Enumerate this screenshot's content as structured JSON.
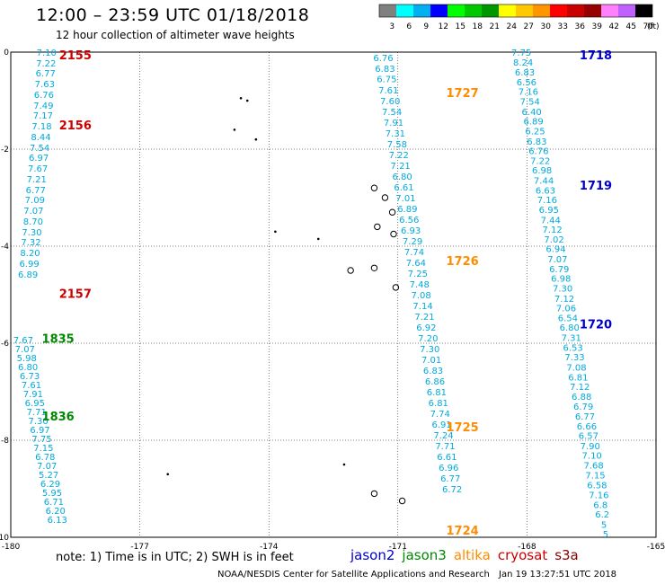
{
  "header": {
    "title": "12:00 – 23:59 UTC 01/18/2018",
    "subtitle": "12 hour collection of altimeter wave heights"
  },
  "colorbar": {
    "unit": "(ft)",
    "ticks": [
      "3",
      "6",
      "9",
      "12",
      "15",
      "18",
      "21",
      "24",
      "27",
      "30",
      "33",
      "36",
      "39",
      "42",
      "45",
      "70"
    ],
    "colors": [
      "#808080",
      "#00ffff",
      "#00b0f0",
      "#0000ff",
      "#00ff00",
      "#00c800",
      "#009600",
      "#ffff00",
      "#ffc800",
      "#ff9600",
      "#ff0000",
      "#c80000",
      "#960000",
      "#ff80ff",
      "#c060ff",
      "#000000"
    ]
  },
  "footer": {
    "note": "note: 1) Time is in UTC; 2) SWH is in feet",
    "satellites": [
      {
        "name": "jason2",
        "color": "#0000cc"
      },
      {
        "name": "jason3",
        "color": "#008800"
      },
      {
        "name": "altika",
        "color": "#ff8c00"
      },
      {
        "name": "cryosat",
        "color": "#cc0000"
      },
      {
        "name": "s3a",
        "color": "#880000"
      }
    ],
    "credit": "NOAA/NESDIS Center for Satellite Applications and Research",
    "stamp": "Jan 19 13:27:51 UTC 2018"
  },
  "chart_data": {
    "type": "scatter",
    "units": "ft",
    "xlim": [
      -180,
      -165
    ],
    "ylim": [
      -10,
      0
    ],
    "x_ticks": [
      -180,
      -177,
      -174,
      -171,
      -168,
      -165
    ],
    "y_ticks": [
      0,
      -2,
      -4,
      -6,
      -8,
      -10
    ],
    "grid": true,
    "value_color": "#00aadd",
    "tracks": [
      {
        "satellite": "cryosat",
        "times": [
          {
            "label": "2155",
            "lat": -0.06
          },
          {
            "label": "2156",
            "lat": -1.5
          },
          {
            "label": "2157",
            "lat": -4.97
          }
        ],
        "label_lon": -178.5,
        "points": [
          {
            "lon": -179.17,
            "lat": 0,
            "v": "7.10"
          },
          {
            "lon": -179.18,
            "lat": -0.22,
            "v": "7.22"
          },
          {
            "lon": -179.19,
            "lat": -0.43,
            "v": "6.77"
          },
          {
            "lon": -179.21,
            "lat": -0.65,
            "v": "7.63"
          },
          {
            "lon": -179.23,
            "lat": -0.87,
            "v": "6.76"
          },
          {
            "lon": -179.24,
            "lat": -1.09,
            "v": "7.49"
          },
          {
            "lon": -179.25,
            "lat": -1.3,
            "v": "7.17"
          },
          {
            "lon": -179.28,
            "lat": -1.52,
            "v": "7.18"
          },
          {
            "lon": -179.3,
            "lat": -1.74,
            "v": "8.44"
          },
          {
            "lon": -179.33,
            "lat": -1.96,
            "v": "7.54"
          },
          {
            "lon": -179.35,
            "lat": -2.17,
            "v": "6.97"
          },
          {
            "lon": -179.37,
            "lat": -2.39,
            "v": "7.67"
          },
          {
            "lon": -179.4,
            "lat": -2.61,
            "v": "7.21"
          },
          {
            "lon": -179.42,
            "lat": -2.83,
            "v": "6.77"
          },
          {
            "lon": -179.44,
            "lat": -3.04,
            "v": "7.09"
          },
          {
            "lon": -179.47,
            "lat": -3.26,
            "v": "7.07"
          },
          {
            "lon": -179.48,
            "lat": -3.48,
            "v": "8.70"
          },
          {
            "lon": -179.51,
            "lat": -3.7,
            "v": "7.30"
          },
          {
            "lon": -179.53,
            "lat": -3.91,
            "v": "7.32"
          },
          {
            "lon": -179.55,
            "lat": -4.13,
            "v": "8.20"
          },
          {
            "lon": -179.57,
            "lat": -4.35,
            "v": "6.99"
          },
          {
            "lon": -179.6,
            "lat": -4.57,
            "v": "6.89"
          }
        ]
      },
      {
        "satellite": "jason3",
        "times": [
          {
            "label": "1835",
            "lat": -5.9
          },
          {
            "label": "1836",
            "lat": -7.5
          }
        ],
        "label_lon": -178.9,
        "points": [
          {
            "lon": -179.71,
            "lat": -5.93,
            "v": "7.67"
          },
          {
            "lon": -179.67,
            "lat": -6.11,
            "v": "7.07"
          },
          {
            "lon": -179.63,
            "lat": -6.3,
            "v": "5.98"
          },
          {
            "lon": -179.6,
            "lat": -6.48,
            "v": "6.80"
          },
          {
            "lon": -179.56,
            "lat": -6.67,
            "v": "6.73"
          },
          {
            "lon": -179.52,
            "lat": -6.85,
            "v": "7.61"
          },
          {
            "lon": -179.48,
            "lat": -7.04,
            "v": "7.91"
          },
          {
            "lon": -179.44,
            "lat": -7.22,
            "v": "6.95"
          },
          {
            "lon": -179.4,
            "lat": -7.41,
            "v": "7.71"
          },
          {
            "lon": -179.36,
            "lat": -7.59,
            "v": "7.30"
          },
          {
            "lon": -179.32,
            "lat": -7.78,
            "v": "6.97"
          },
          {
            "lon": -179.28,
            "lat": -7.96,
            "v": "7.75"
          },
          {
            "lon": -179.24,
            "lat": -8.15,
            "v": "7.15"
          },
          {
            "lon": -179.2,
            "lat": -8.33,
            "v": "6.78"
          },
          {
            "lon": -179.16,
            "lat": -8.52,
            "v": "7.07"
          },
          {
            "lon": -179.12,
            "lat": -8.7,
            "v": "5.27"
          },
          {
            "lon": -179.08,
            "lat": -8.89,
            "v": "6.29"
          },
          {
            "lon": -179.04,
            "lat": -9.07,
            "v": "5.95"
          },
          {
            "lon": -179.0,
            "lat": -9.26,
            "v": "6.71"
          },
          {
            "lon": -178.96,
            "lat": -9.44,
            "v": "6.20"
          },
          {
            "lon": -178.92,
            "lat": -9.63,
            "v": "6.13"
          }
        ]
      },
      {
        "satellite": "altika",
        "times": [
          {
            "label": "1727",
            "lat": -0.83
          },
          {
            "label": "1726",
            "lat": -4.3
          },
          {
            "label": "1725",
            "lat": -7.72
          },
          {
            "label": "1724",
            "lat": -9.85
          }
        ],
        "label_lon": -169.5,
        "points": [
          {
            "lon": -171.34,
            "lat": -0.11,
            "v": "6.76"
          },
          {
            "lon": -171.3,
            "lat": -0.33,
            "v": "6.83"
          },
          {
            "lon": -171.26,
            "lat": -0.55,
            "v": "6.75"
          },
          {
            "lon": -171.22,
            "lat": -0.78,
            "v": "7.61"
          },
          {
            "lon": -171.18,
            "lat": -1.0,
            "v": "7.60"
          },
          {
            "lon": -171.14,
            "lat": -1.22,
            "v": "7.54"
          },
          {
            "lon": -171.1,
            "lat": -1.44,
            "v": "7.91"
          },
          {
            "lon": -171.06,
            "lat": -1.67,
            "v": "7.31"
          },
          {
            "lon": -171.02,
            "lat": -1.89,
            "v": "7.58"
          },
          {
            "lon": -170.98,
            "lat": -2.11,
            "v": "7.22"
          },
          {
            "lon": -170.94,
            "lat": -2.33,
            "v": "7.21"
          },
          {
            "lon": -170.9,
            "lat": -2.56,
            "v": "6.80"
          },
          {
            "lon": -170.86,
            "lat": -2.78,
            "v": "6.61"
          },
          {
            "lon": -170.82,
            "lat": -3.0,
            "v": "7.01"
          },
          {
            "lon": -170.78,
            "lat": -3.22,
            "v": "6.89"
          },
          {
            "lon": -170.74,
            "lat": -3.44,
            "v": "6.56"
          },
          {
            "lon": -170.7,
            "lat": -3.67,
            "v": "6.93"
          },
          {
            "lon": -170.66,
            "lat": -3.89,
            "v": "7.29"
          },
          {
            "lon": -170.62,
            "lat": -4.11,
            "v": "7.74"
          },
          {
            "lon": -170.58,
            "lat": -4.33,
            "v": "7.64"
          },
          {
            "lon": -170.54,
            "lat": -4.56,
            "v": "7.25"
          },
          {
            "lon": -170.5,
            "lat": -4.78,
            "v": "7.48"
          },
          {
            "lon": -170.46,
            "lat": -5.0,
            "v": "7.08"
          },
          {
            "lon": -170.42,
            "lat": -5.22,
            "v": "7.14"
          },
          {
            "lon": -170.38,
            "lat": -5.44,
            "v": "7.21"
          },
          {
            "lon": -170.34,
            "lat": -5.67,
            "v": "6.92"
          },
          {
            "lon": -170.3,
            "lat": -5.89,
            "v": "7.20"
          },
          {
            "lon": -170.26,
            "lat": -6.11,
            "v": "7.30"
          },
          {
            "lon": -170.22,
            "lat": -6.33,
            "v": "7.01"
          },
          {
            "lon": -170.18,
            "lat": -6.56,
            "v": "6.83"
          },
          {
            "lon": -170.14,
            "lat": -6.78,
            "v": "6.86"
          },
          {
            "lon": -170.1,
            "lat": -7.0,
            "v": "6.81"
          },
          {
            "lon": -170.06,
            "lat": -7.22,
            "v": "6.81"
          },
          {
            "lon": -170.02,
            "lat": -7.44,
            "v": "7.74"
          },
          {
            "lon": -169.98,
            "lat": -7.67,
            "v": "6.91"
          },
          {
            "lon": -169.94,
            "lat": -7.89,
            "v": "7.24"
          },
          {
            "lon": -169.9,
            "lat": -8.11,
            "v": "7.71"
          },
          {
            "lon": -169.86,
            "lat": -8.33,
            "v": "6.61"
          },
          {
            "lon": -169.82,
            "lat": -8.56,
            "v": "6.96"
          },
          {
            "lon": -169.78,
            "lat": -8.78,
            "v": "6.77"
          },
          {
            "lon": -169.74,
            "lat": -9.0,
            "v": "6.72"
          }
        ]
      },
      {
        "satellite": "jason2",
        "times": [
          {
            "label": "1718",
            "lat": -0.06
          },
          {
            "label": "1719",
            "lat": -2.74
          },
          {
            "label": "1720",
            "lat": -5.6
          }
        ],
        "label_lon": -166.4,
        "points": [
          {
            "lon": -168.13,
            "lat": 0.0,
            "v": "7.75"
          },
          {
            "lon": -168.09,
            "lat": -0.2,
            "v": "8.24"
          },
          {
            "lon": -168.05,
            "lat": -0.41,
            "v": "6.83"
          },
          {
            "lon": -168.01,
            "lat": -0.61,
            "v": "6.56"
          },
          {
            "lon": -167.97,
            "lat": -0.81,
            "v": "7.16"
          },
          {
            "lon": -167.93,
            "lat": -1.01,
            "v": "7.54"
          },
          {
            "lon": -167.89,
            "lat": -1.22,
            "v": "6.40"
          },
          {
            "lon": -167.85,
            "lat": -1.42,
            "v": "6.89"
          },
          {
            "lon": -167.81,
            "lat": -1.62,
            "v": "6.25"
          },
          {
            "lon": -167.77,
            "lat": -1.83,
            "v": "6.83"
          },
          {
            "lon": -167.73,
            "lat": -2.03,
            "v": "6.76"
          },
          {
            "lon": -167.69,
            "lat": -2.23,
            "v": "7.22"
          },
          {
            "lon": -167.65,
            "lat": -2.43,
            "v": "6.98"
          },
          {
            "lon": -167.61,
            "lat": -2.64,
            "v": "7.44"
          },
          {
            "lon": -167.57,
            "lat": -2.84,
            "v": "6.63"
          },
          {
            "lon": -167.53,
            "lat": -3.04,
            "v": "7.16"
          },
          {
            "lon": -167.49,
            "lat": -3.24,
            "v": "6.95"
          },
          {
            "lon": -167.45,
            "lat": -3.45,
            "v": "7.44"
          },
          {
            "lon": -167.41,
            "lat": -3.65,
            "v": "7.12"
          },
          {
            "lon": -167.37,
            "lat": -3.85,
            "v": "7.02"
          },
          {
            "lon": -167.33,
            "lat": -4.05,
            "v": "6.94"
          },
          {
            "lon": -167.29,
            "lat": -4.26,
            "v": "7.07"
          },
          {
            "lon": -167.25,
            "lat": -4.46,
            "v": "6.79"
          },
          {
            "lon": -167.21,
            "lat": -4.66,
            "v": "6.98"
          },
          {
            "lon": -167.17,
            "lat": -4.86,
            "v": "7.30"
          },
          {
            "lon": -167.13,
            "lat": -5.07,
            "v": "7.12"
          },
          {
            "lon": -167.09,
            "lat": -5.27,
            "v": "7.06"
          },
          {
            "lon": -167.05,
            "lat": -5.47,
            "v": "6.54"
          },
          {
            "lon": -167.01,
            "lat": -5.67,
            "v": "6.80"
          },
          {
            "lon": -166.97,
            "lat": -5.88,
            "v": "7.31"
          },
          {
            "lon": -166.93,
            "lat": -6.08,
            "v": "6.53"
          },
          {
            "lon": -166.89,
            "lat": -6.28,
            "v": "7.33"
          },
          {
            "lon": -166.85,
            "lat": -6.49,
            "v": "7.08"
          },
          {
            "lon": -166.81,
            "lat": -6.69,
            "v": "6.81"
          },
          {
            "lon": -166.77,
            "lat": -6.89,
            "v": "7.12"
          },
          {
            "lon": -166.73,
            "lat": -7.09,
            "v": "6.88"
          },
          {
            "lon": -166.69,
            "lat": -7.3,
            "v": "6.79"
          },
          {
            "lon": -166.65,
            "lat": -7.5,
            "v": "6.77"
          },
          {
            "lon": -166.61,
            "lat": -7.7,
            "v": "6.66"
          },
          {
            "lon": -166.57,
            "lat": -7.9,
            "v": "6.57"
          },
          {
            "lon": -166.53,
            "lat": -8.11,
            "v": "7.90"
          },
          {
            "lon": -166.49,
            "lat": -8.31,
            "v": "7.10"
          },
          {
            "lon": -166.45,
            "lat": -8.51,
            "v": "7.68"
          },
          {
            "lon": -166.41,
            "lat": -8.71,
            "v": "7.15"
          },
          {
            "lon": -166.37,
            "lat": -8.92,
            "v": "6.58"
          },
          {
            "lon": -166.33,
            "lat": -9.12,
            "v": "7.16"
          },
          {
            "lon": -166.29,
            "lat": -9.32,
            "v": "6.8"
          },
          {
            "lon": -166.25,
            "lat": -9.52,
            "v": "6.2"
          },
          {
            "lon": -166.21,
            "lat": -9.73,
            "v": "5"
          },
          {
            "lon": -166.17,
            "lat": -9.93,
            "v": "5"
          }
        ]
      }
    ],
    "islands": [
      {
        "type": "dot",
        "lon": -174.65,
        "lat": -0.95
      },
      {
        "type": "dot",
        "lon": -174.5,
        "lat": -1.0
      },
      {
        "type": "dot",
        "lon": -174.8,
        "lat": -1.6
      },
      {
        "type": "dot",
        "lon": -174.3,
        "lat": -1.8
      },
      {
        "type": "dot",
        "lon": -173.85,
        "lat": -3.7
      },
      {
        "type": "dot",
        "lon": -172.85,
        "lat": -3.85
      },
      {
        "type": "dot",
        "lon": -176.35,
        "lat": -8.7
      },
      {
        "type": "dot",
        "lon": -172.25,
        "lat": -8.5
      },
      {
        "type": "blob",
        "lon": -171.55,
        "lat": -2.8
      },
      {
        "type": "blob",
        "lon": -171.3,
        "lat": -3.0
      },
      {
        "type": "blob",
        "lon": -171.13,
        "lat": -3.3
      },
      {
        "type": "blob",
        "lon": -171.48,
        "lat": -3.6
      },
      {
        "type": "blob",
        "lon": -171.1,
        "lat": -3.75
      },
      {
        "type": "blob",
        "lon": -172.1,
        "lat": -4.5
      },
      {
        "type": "blob",
        "lon": -171.55,
        "lat": -4.45
      },
      {
        "type": "blob",
        "lon": -171.05,
        "lat": -4.85
      },
      {
        "type": "blob",
        "lon": -171.55,
        "lat": -9.1
      },
      {
        "type": "blob",
        "lon": -170.9,
        "lat": -9.25
      }
    ]
  }
}
